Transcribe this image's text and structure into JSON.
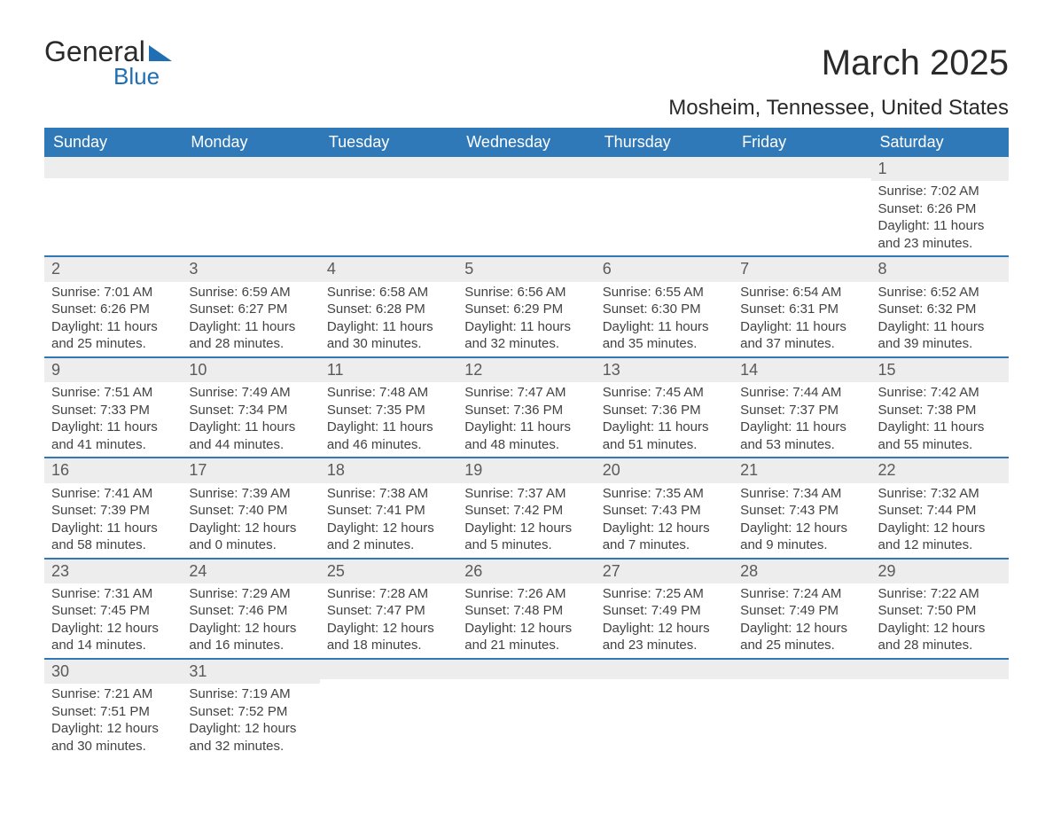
{
  "logo": {
    "general": "General",
    "blue": "Blue"
  },
  "title": "March 2025",
  "location": "Mosheim, Tennessee, United States",
  "columns": [
    "Sunday",
    "Monday",
    "Tuesday",
    "Wednesday",
    "Thursday",
    "Friday",
    "Saturday"
  ],
  "colors": {
    "header_bg": "#2f79b9",
    "header_fg": "#ffffff",
    "band_bg": "#ededed",
    "band_border": "#2f79b9",
    "text": "#424242",
    "brand_blue": "#1f6fb2"
  },
  "weeks": [
    [
      null,
      null,
      null,
      null,
      null,
      null,
      {
        "n": "1",
        "sr": "Sunrise: 7:02 AM",
        "ss": "Sunset: 6:26 PM",
        "dl": "Daylight: 11 hours and 23 minutes."
      }
    ],
    [
      {
        "n": "2",
        "sr": "Sunrise: 7:01 AM",
        "ss": "Sunset: 6:26 PM",
        "dl": "Daylight: 11 hours and 25 minutes."
      },
      {
        "n": "3",
        "sr": "Sunrise: 6:59 AM",
        "ss": "Sunset: 6:27 PM",
        "dl": "Daylight: 11 hours and 28 minutes."
      },
      {
        "n": "4",
        "sr": "Sunrise: 6:58 AM",
        "ss": "Sunset: 6:28 PM",
        "dl": "Daylight: 11 hours and 30 minutes."
      },
      {
        "n": "5",
        "sr": "Sunrise: 6:56 AM",
        "ss": "Sunset: 6:29 PM",
        "dl": "Daylight: 11 hours and 32 minutes."
      },
      {
        "n": "6",
        "sr": "Sunrise: 6:55 AM",
        "ss": "Sunset: 6:30 PM",
        "dl": "Daylight: 11 hours and 35 minutes."
      },
      {
        "n": "7",
        "sr": "Sunrise: 6:54 AM",
        "ss": "Sunset: 6:31 PM",
        "dl": "Daylight: 11 hours and 37 minutes."
      },
      {
        "n": "8",
        "sr": "Sunrise: 6:52 AM",
        "ss": "Sunset: 6:32 PM",
        "dl": "Daylight: 11 hours and 39 minutes."
      }
    ],
    [
      {
        "n": "9",
        "sr": "Sunrise: 7:51 AM",
        "ss": "Sunset: 7:33 PM",
        "dl": "Daylight: 11 hours and 41 minutes."
      },
      {
        "n": "10",
        "sr": "Sunrise: 7:49 AM",
        "ss": "Sunset: 7:34 PM",
        "dl": "Daylight: 11 hours and 44 minutes."
      },
      {
        "n": "11",
        "sr": "Sunrise: 7:48 AM",
        "ss": "Sunset: 7:35 PM",
        "dl": "Daylight: 11 hours and 46 minutes."
      },
      {
        "n": "12",
        "sr": "Sunrise: 7:47 AM",
        "ss": "Sunset: 7:36 PM",
        "dl": "Daylight: 11 hours and 48 minutes."
      },
      {
        "n": "13",
        "sr": "Sunrise: 7:45 AM",
        "ss": "Sunset: 7:36 PM",
        "dl": "Daylight: 11 hours and 51 minutes."
      },
      {
        "n": "14",
        "sr": "Sunrise: 7:44 AM",
        "ss": "Sunset: 7:37 PM",
        "dl": "Daylight: 11 hours and 53 minutes."
      },
      {
        "n": "15",
        "sr": "Sunrise: 7:42 AM",
        "ss": "Sunset: 7:38 PM",
        "dl": "Daylight: 11 hours and 55 minutes."
      }
    ],
    [
      {
        "n": "16",
        "sr": "Sunrise: 7:41 AM",
        "ss": "Sunset: 7:39 PM",
        "dl": "Daylight: 11 hours and 58 minutes."
      },
      {
        "n": "17",
        "sr": "Sunrise: 7:39 AM",
        "ss": "Sunset: 7:40 PM",
        "dl": "Daylight: 12 hours and 0 minutes."
      },
      {
        "n": "18",
        "sr": "Sunrise: 7:38 AM",
        "ss": "Sunset: 7:41 PM",
        "dl": "Daylight: 12 hours and 2 minutes."
      },
      {
        "n": "19",
        "sr": "Sunrise: 7:37 AM",
        "ss": "Sunset: 7:42 PM",
        "dl": "Daylight: 12 hours and 5 minutes."
      },
      {
        "n": "20",
        "sr": "Sunrise: 7:35 AM",
        "ss": "Sunset: 7:43 PM",
        "dl": "Daylight: 12 hours and 7 minutes."
      },
      {
        "n": "21",
        "sr": "Sunrise: 7:34 AM",
        "ss": "Sunset: 7:43 PM",
        "dl": "Daylight: 12 hours and 9 minutes."
      },
      {
        "n": "22",
        "sr": "Sunrise: 7:32 AM",
        "ss": "Sunset: 7:44 PM",
        "dl": "Daylight: 12 hours and 12 minutes."
      }
    ],
    [
      {
        "n": "23",
        "sr": "Sunrise: 7:31 AM",
        "ss": "Sunset: 7:45 PM",
        "dl": "Daylight: 12 hours and 14 minutes."
      },
      {
        "n": "24",
        "sr": "Sunrise: 7:29 AM",
        "ss": "Sunset: 7:46 PM",
        "dl": "Daylight: 12 hours and 16 minutes."
      },
      {
        "n": "25",
        "sr": "Sunrise: 7:28 AM",
        "ss": "Sunset: 7:47 PM",
        "dl": "Daylight: 12 hours and 18 minutes."
      },
      {
        "n": "26",
        "sr": "Sunrise: 7:26 AM",
        "ss": "Sunset: 7:48 PM",
        "dl": "Daylight: 12 hours and 21 minutes."
      },
      {
        "n": "27",
        "sr": "Sunrise: 7:25 AM",
        "ss": "Sunset: 7:49 PM",
        "dl": "Daylight: 12 hours and 23 minutes."
      },
      {
        "n": "28",
        "sr": "Sunrise: 7:24 AM",
        "ss": "Sunset: 7:49 PM",
        "dl": "Daylight: 12 hours and 25 minutes."
      },
      {
        "n": "29",
        "sr": "Sunrise: 7:22 AM",
        "ss": "Sunset: 7:50 PM",
        "dl": "Daylight: 12 hours and 28 minutes."
      }
    ],
    [
      {
        "n": "30",
        "sr": "Sunrise: 7:21 AM",
        "ss": "Sunset: 7:51 PM",
        "dl": "Daylight: 12 hours and 30 minutes."
      },
      {
        "n": "31",
        "sr": "Sunrise: 7:19 AM",
        "ss": "Sunset: 7:52 PM",
        "dl": "Daylight: 12 hours and 32 minutes."
      },
      null,
      null,
      null,
      null,
      null
    ]
  ]
}
